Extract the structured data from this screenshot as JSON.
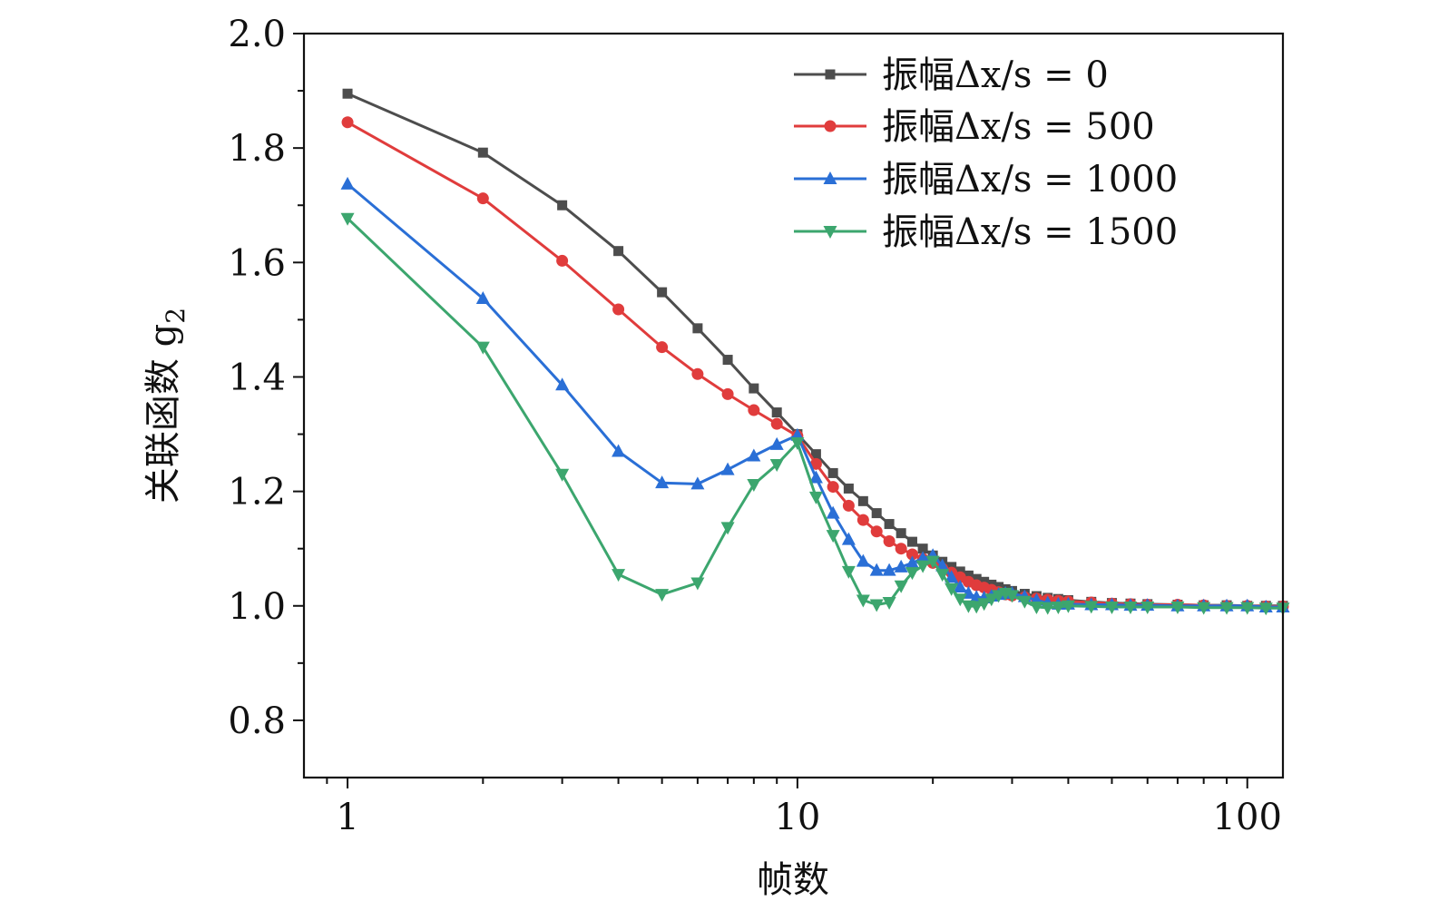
{
  "chart_data": {
    "type": "line",
    "title": "",
    "xlabel": "帧数",
    "ylabel": "关联函数 g",
    "ylabel_subscript": "2",
    "xscale": "log",
    "xlim": [
      0.8,
      120
    ],
    "ylim": [
      0.7,
      2.0
    ],
    "x_tick_values": [
      1,
      10,
      100
    ],
    "x_tick_labels": [
      "1",
      "10",
      "100"
    ],
    "y_tick_values": [
      0.8,
      1.0,
      1.2,
      1.4,
      1.6,
      1.8,
      2.0
    ],
    "y_tick_labels": [
      "0.8",
      "1.0",
      "1.2",
      "1.4",
      "1.6",
      "1.8",
      "2.0"
    ],
    "grid": false,
    "legend_position": "top-right",
    "series": [
      {
        "name": "振幅Δx/s = 0",
        "color": "#4d4d4d",
        "marker": "square",
        "x": [
          1,
          2,
          3,
          4,
          5,
          6,
          7,
          8,
          9,
          10,
          11,
          12,
          13,
          14,
          15,
          16,
          17,
          18,
          19,
          20,
          21,
          22,
          23,
          24,
          25,
          26,
          27,
          28,
          29,
          30,
          32,
          34,
          36,
          38,
          40,
          45,
          50,
          55,
          60,
          70,
          80,
          90,
          100,
          110,
          120
        ],
        "y": [
          1.895,
          1.792,
          1.7,
          1.62,
          1.548,
          1.485,
          1.43,
          1.38,
          1.338,
          1.3,
          1.265,
          1.232,
          1.205,
          1.183,
          1.162,
          1.143,
          1.127,
          1.112,
          1.1,
          1.088,
          1.077,
          1.068,
          1.06,
          1.053,
          1.047,
          1.042,
          1.037,
          1.033,
          1.029,
          1.026,
          1.021,
          1.017,
          1.014,
          1.012,
          1.01,
          1.007,
          1.005,
          1.004,
          1.003,
          1.002,
          1.001,
          1.001,
          1.0,
          1.0,
          1.0
        ]
      },
      {
        "name": "振幅Δx/s = 500",
        "color": "#e03c3c",
        "marker": "circle",
        "x": [
          1,
          2,
          3,
          4,
          5,
          6,
          7,
          8,
          9,
          10,
          11,
          12,
          13,
          14,
          15,
          16,
          17,
          18,
          19,
          20,
          21,
          22,
          23,
          24,
          25,
          26,
          27,
          28,
          29,
          30,
          32,
          34,
          36,
          38,
          40,
          45,
          50,
          55,
          60,
          70,
          80,
          90,
          100,
          110,
          120
        ],
        "y": [
          1.845,
          1.712,
          1.603,
          1.518,
          1.452,
          1.405,
          1.37,
          1.342,
          1.318,
          1.297,
          1.248,
          1.208,
          1.175,
          1.15,
          1.13,
          1.113,
          1.1,
          1.09,
          1.082,
          1.075,
          1.065,
          1.058,
          1.05,
          1.042,
          1.036,
          1.032,
          1.028,
          1.024,
          1.02,
          1.018,
          1.015,
          1.013,
          1.011,
          1.009,
          1.008,
          1.006,
          1.004,
          1.003,
          1.002,
          1.002,
          1.001,
          1.0,
          1.0,
          0.999,
          0.999
        ]
      },
      {
        "name": "振幅Δx/s = 1000",
        "color": "#2a6fd6",
        "marker": "triangle-up",
        "x": [
          1,
          2,
          3,
          4,
          5,
          6,
          7,
          8,
          9,
          10,
          11,
          12,
          13,
          14,
          15,
          16,
          17,
          18,
          19,
          20,
          21,
          22,
          23,
          24,
          25,
          26,
          27,
          28,
          29,
          30,
          32,
          34,
          36,
          38,
          40,
          45,
          50,
          55,
          60,
          70,
          80,
          90,
          100,
          110,
          120
        ],
        "y": [
          1.737,
          1.537,
          1.386,
          1.27,
          1.215,
          1.213,
          1.238,
          1.262,
          1.282,
          1.298,
          1.224,
          1.162,
          1.116,
          1.078,
          1.062,
          1.062,
          1.068,
          1.075,
          1.083,
          1.088,
          1.07,
          1.05,
          1.033,
          1.022,
          1.015,
          1.014,
          1.017,
          1.02,
          1.022,
          1.022,
          1.016,
          1.01,
          1.005,
          1.003,
          1.003,
          1.002,
          1.002,
          1.001,
          1.001,
          1.0,
          1.0,
          1.0,
          1.0,
          0.998,
          0.998
        ]
      },
      {
        "name": "振幅Δx/s = 1500",
        "color": "#3ca66e",
        "marker": "triangle-down",
        "x": [
          1,
          2,
          3,
          4,
          5,
          6,
          7,
          8,
          9,
          10,
          11,
          12,
          13,
          14,
          15,
          16,
          17,
          18,
          19,
          20,
          21,
          22,
          23,
          24,
          25,
          26,
          27,
          28,
          29,
          30,
          32,
          34,
          36,
          38,
          40,
          45,
          50,
          55,
          60,
          70,
          80,
          90,
          100,
          110,
          120
        ],
        "y": [
          1.677,
          1.452,
          1.23,
          1.055,
          1.02,
          1.04,
          1.137,
          1.212,
          1.247,
          1.285,
          1.19,
          1.123,
          1.06,
          1.01,
          1.002,
          1.006,
          1.035,
          1.058,
          1.07,
          1.078,
          1.055,
          1.03,
          1.012,
          1.0,
          0.999,
          1.004,
          1.012,
          1.018,
          1.022,
          1.018,
          1.008,
          0.998,
          0.997,
          0.998,
          1.0,
          0.999,
          0.998,
          0.998,
          0.998,
          0.998,
          0.997,
          0.997,
          0.997,
          0.996,
          0.996
        ]
      }
    ]
  }
}
